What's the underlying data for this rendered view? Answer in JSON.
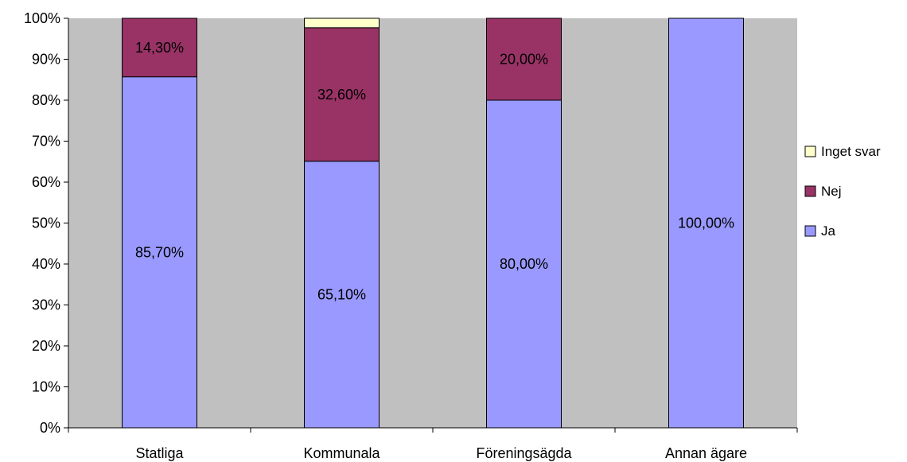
{
  "chart_data": {
    "type": "bar",
    "stacked": "percent",
    "categories": [
      "Statliga",
      "Kommunala",
      "Föreningsägda",
      "Annan ägare"
    ],
    "series": [
      {
        "name": "Ja",
        "values": [
          85.7,
          65.1,
          80.0,
          100.0
        ],
        "labels": [
          "85,70%",
          "65,10%",
          "80,00%",
          "100,00%"
        ],
        "color": "#9999ff"
      },
      {
        "name": "Nej",
        "values": [
          14.3,
          32.6,
          20.0,
          0
        ],
        "labels": [
          "14,30%",
          "32,60%",
          "20,00%",
          ""
        ],
        "color": "#993366"
      },
      {
        "name": "Inget svar",
        "values": [
          0,
          2.3,
          0,
          0
        ],
        "labels": [
          "",
          "",
          "",
          ""
        ],
        "color": "#ffffcc"
      }
    ],
    "y_ticks": [
      "0%",
      "10%",
      "20%",
      "30%",
      "40%",
      "50%",
      "60%",
      "70%",
      "80%",
      "90%",
      "100%"
    ],
    "ylim": [
      0,
      100
    ],
    "grid": false,
    "plot_background": "#c0c0c0",
    "legend_position": "right",
    "legend_order": [
      "Inget svar",
      "Nej",
      "Ja"
    ]
  }
}
